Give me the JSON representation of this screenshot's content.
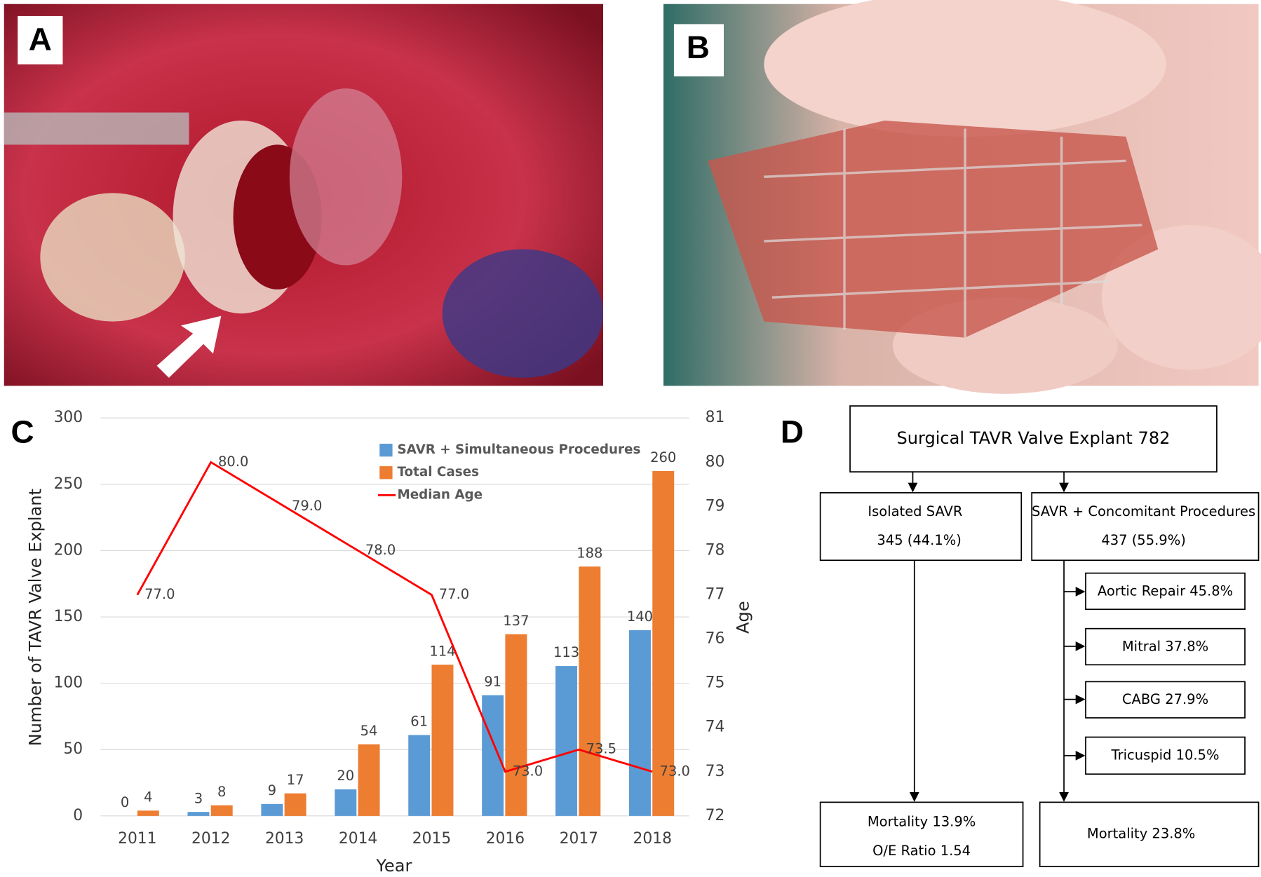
{
  "panel_labels": [
    "A",
    "B",
    "C",
    "D"
  ],
  "chart_data": {
    "type": "bar",
    "x_label": "Year",
    "y_label": "Number of TAVR Valve Explant",
    "y2_label": "Age",
    "categories": [
      "2011",
      "2012",
      "2013",
      "2014",
      "2015",
      "2016",
      "2017",
      "2018"
    ],
    "series": [
      {
        "name": "SAVR + Simultaneous Procedures",
        "color": "#5b9bd5",
        "values": [
          0,
          3,
          9,
          20,
          61,
          91,
          113,
          140
        ]
      },
      {
        "name": "Total Cases",
        "color": "#ed7d31",
        "values": [
          4,
          8,
          17,
          54,
          114,
          137,
          188,
          260
        ]
      },
      {
        "name": "Median Age",
        "color": "#ff0000",
        "type": "line",
        "axis": "y2",
        "values": [
          77,
          80,
          79,
          78,
          77,
          73,
          73.5,
          73
        ],
        "value_labels": [
          "77.0",
          "80.0",
          "79.0",
          "78.0",
          "77.0",
          "73.0",
          "73.5",
          "73.0"
        ]
      }
    ],
    "ylim": [
      0,
      300
    ],
    "yticks": [
      0,
      50,
      100,
      150,
      200,
      250,
      300
    ],
    "y2lim": [
      72,
      81
    ],
    "y2ticks": [
      72,
      73,
      74,
      75,
      76,
      77,
      78,
      79,
      80,
      81
    ],
    "grid": true
  },
  "diagram": {
    "nodes": [
      {
        "lines": [
          "Surgical TAVR Valve Explant 782"
        ]
      },
      {
        "lines": [
          "Isolated SAVR",
          "345 (44.1%)"
        ]
      },
      {
        "lines": [
          "SAVR + Concomitant Procedures",
          "437 (55.9%)"
        ]
      },
      {
        "lines": [
          "Aortic Repair 45.8%"
        ]
      },
      {
        "lines": [
          "Mitral 37.8%"
        ]
      },
      {
        "lines": [
          "CABG 27.9%"
        ]
      },
      {
        "lines": [
          "Tricuspid 10.5%"
        ]
      },
      {
        "lines": [
          "Mortality 13.9%",
          "O/E Ratio 1.54"
        ]
      },
      {
        "lines": [
          "Mortality 23.8%"
        ]
      }
    ]
  }
}
